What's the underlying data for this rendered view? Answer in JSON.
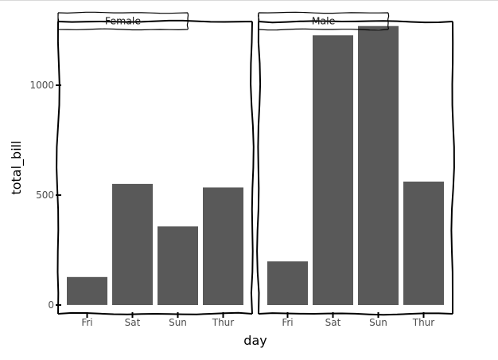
{
  "chart_data": {
    "type": "bar",
    "xlabel": "day",
    "ylabel": "total_bill",
    "categories": [
      "Fri",
      "Sat",
      "Sun",
      "Thur"
    ],
    "yticks": [
      0,
      500,
      1000
    ],
    "ylim": [
      -40,
      1290
    ],
    "grid": false,
    "style": "xkcd",
    "bar_color": "#595959",
    "facets": [
      {
        "label": "Female",
        "values": [
          127.31,
          551.05,
          357.7,
          534.89
        ]
      },
      {
        "label": "Male",
        "values": [
          198.57,
          1227.35,
          1269.46,
          561.44
        ]
      }
    ]
  }
}
